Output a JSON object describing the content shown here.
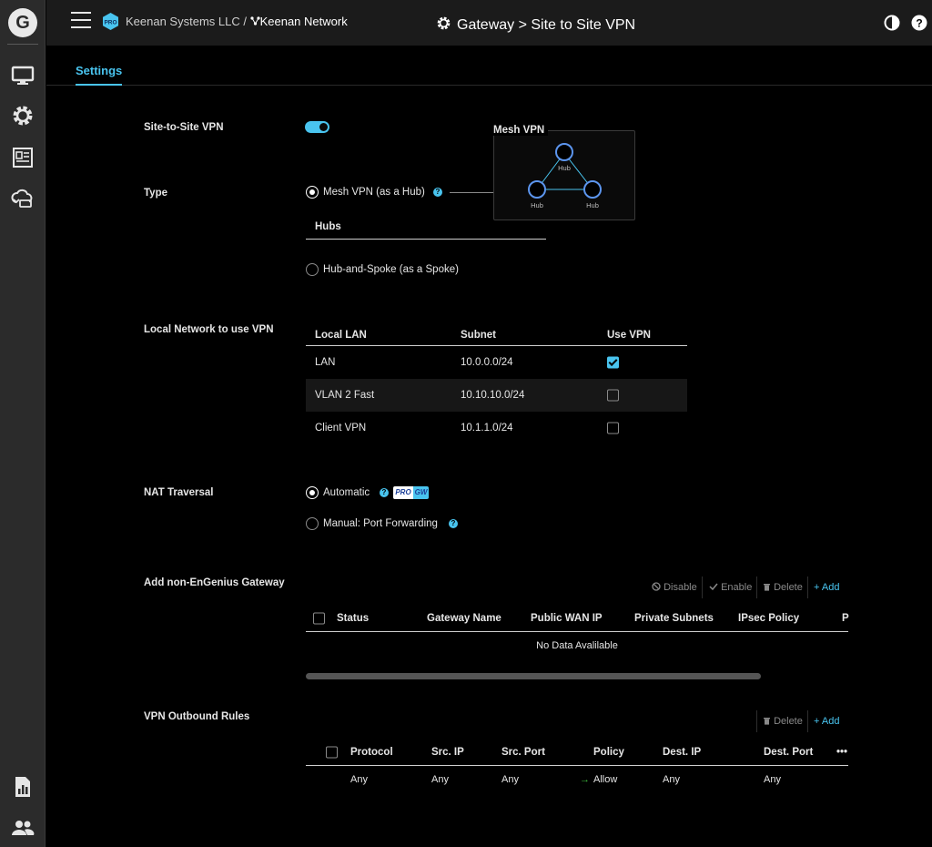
{
  "header": {
    "org": "Keenan Systems LLC /",
    "network": "Keenan Network",
    "breadcrumb": "Gateway > Site to Site VPN",
    "pro_badge": "PRO"
  },
  "tabs": [
    {
      "label": "Settings"
    }
  ],
  "fields": {
    "site_to_site": {
      "label": "Site-to-Site VPN",
      "enabled": true
    },
    "type": {
      "label": "Type",
      "option_mesh": "Mesh VPN (as a Hub)",
      "option_spoke": "Hub-and-Spoke (as a Spoke)",
      "hubs_label": "Hubs",
      "diagram_title": "Mesh VPN",
      "hub_labels": [
        "Hub",
        "Hub",
        "Hub"
      ]
    },
    "local_network": {
      "label": "Local Network to use VPN",
      "columns": [
        "Local LAN",
        "Subnet",
        "Use VPN"
      ],
      "rows": [
        {
          "lan": "LAN",
          "subnet": "10.0.0.0/24",
          "use_vpn": true
        },
        {
          "lan": "VLAN 2 Fast",
          "subnet": "10.10.10.0/24",
          "use_vpn": false
        },
        {
          "lan": "Client VPN",
          "subnet": "10.1.1.0/24",
          "use_vpn": false
        }
      ]
    },
    "nat": {
      "label": "NAT Traversal",
      "option_auto": "Automatic",
      "option_manual": "Manual: Port Forwarding",
      "badge_pro": "PRO",
      "badge_gw": "GW"
    },
    "non_engenius": {
      "label": "Add non-EnGenius Gateway",
      "toolbar": {
        "disable": "Disable",
        "enable": "Enable",
        "delete": "Delete",
        "add": "Add"
      },
      "columns": [
        "Status",
        "Gateway Name",
        "Public WAN IP",
        "Private Subnets",
        "IPsec Policy",
        "P"
      ],
      "empty": "No Data Avalilable"
    },
    "outbound": {
      "label": "VPN Outbound Rules",
      "toolbar": {
        "delete": "Delete",
        "add": "Add"
      },
      "columns": [
        "Protocol",
        "Src. IP",
        "Src. Port",
        "Policy",
        "Dest. IP",
        "Dest. Port"
      ],
      "more": "•••",
      "rows": [
        {
          "protocol": "Any",
          "src_ip": "Any",
          "src_port": "Any",
          "policy": "Allow",
          "dest_ip": "Any",
          "dest_port": "Any"
        }
      ]
    }
  },
  "colors": {
    "accent": "#49c4ef",
    "allow": "#3dbb3d"
  }
}
